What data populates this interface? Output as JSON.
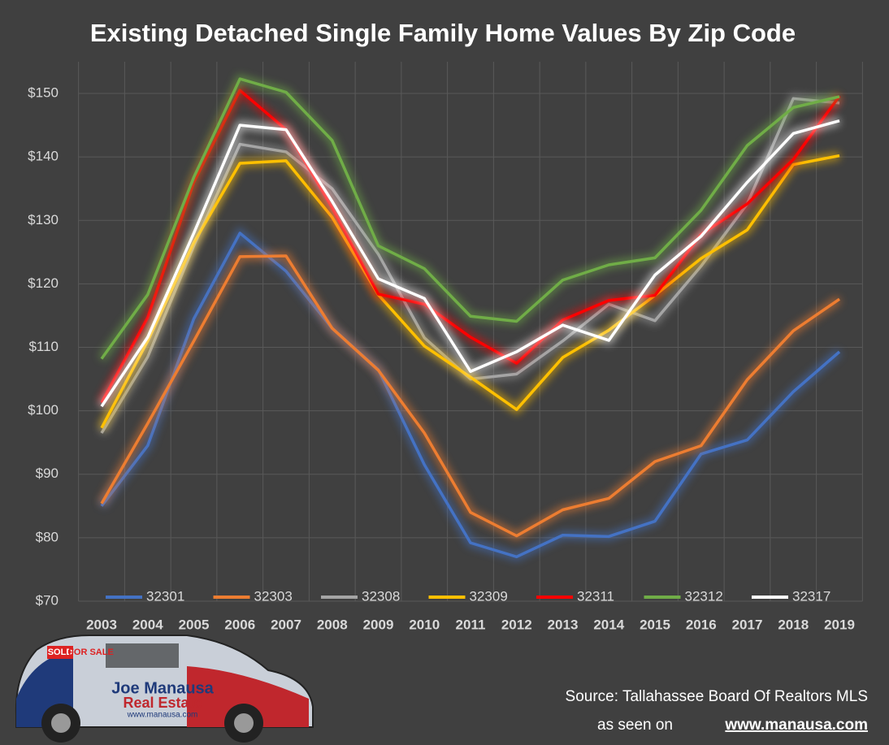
{
  "chart_data": {
    "type": "line",
    "title": "Existing Detached Single Family Home Values By Zip Code",
    "categories": [
      "2003",
      "2004",
      "2005",
      "2006",
      "2007",
      "2008",
      "2009",
      "2010",
      "2011",
      "2012",
      "2013",
      "2014",
      "2015",
      "2016",
      "2017",
      "2018",
      "2019"
    ],
    "series": [
      {
        "name": "32301",
        "color": "#4472c4",
        "values": [
          85,
          94.5,
          114.5,
          128,
          122,
          113,
          106.5,
          91.5,
          79.2,
          77,
          80.4,
          80.2,
          82.6,
          93.2,
          95.4,
          103,
          109.3
        ]
      },
      {
        "name": "32303",
        "color": "#ed7d31",
        "values": [
          85.4,
          98,
          111,
          124.3,
          124.4,
          113,
          106.4,
          96.5,
          84,
          80.3,
          84.4,
          86.2,
          92,
          94.5,
          104.9,
          112.6,
          117.6
        ]
      },
      {
        "name": "32308",
        "color": "#a5a5a5",
        "values": [
          96.5,
          108.5,
          126,
          142,
          140.8,
          135,
          124.7,
          111.5,
          105,
          105.8,
          111,
          116.8,
          114.2,
          122.8,
          132.6,
          149.2,
          148.5
        ]
      },
      {
        "name": "32309",
        "color": "#ffc000",
        "values": [
          97.3,
          111,
          126.5,
          139,
          139.4,
          130.5,
          118.3,
          110.2,
          105.3,
          100.2,
          108.4,
          112.7,
          118.2,
          124,
          128.5,
          138.8,
          140.2
        ]
      },
      {
        "name": "32311",
        "color": "#ff0000",
        "values": [
          101.3,
          114.7,
          136,
          150.5,
          144.3,
          132,
          118.4,
          116.8,
          111.6,
          107.5,
          114.3,
          117.4,
          118.2,
          127.8,
          132.6,
          139.6,
          149.6
        ]
      },
      {
        "name": "32312",
        "color": "#70ad47",
        "values": [
          108.2,
          118.3,
          136.8,
          152.3,
          150.2,
          142.6,
          126,
          122.4,
          114.9,
          114.1,
          120.6,
          123,
          124.1,
          131.6,
          141.8,
          147.8,
          149.5
        ]
      },
      {
        "name": "32317",
        "color": "#ffffff",
        "values": [
          100.7,
          111.6,
          128,
          145,
          144.3,
          133,
          120.8,
          117.7,
          106.2,
          109.3,
          113.5,
          111.1,
          121.4,
          127.5,
          136,
          143.7,
          145.7
        ]
      }
    ],
    "ylim": [
      70,
      155
    ],
    "yticks": [
      {
        "value": 70,
        "label": "$70"
      },
      {
        "value": 80,
        "label": "$80"
      },
      {
        "value": 90,
        "label": "$90"
      },
      {
        "value": 100,
        "label": "$100"
      },
      {
        "value": 110,
        "label": "$110"
      },
      {
        "value": 120,
        "label": "$120"
      },
      {
        "value": 130,
        "label": "$130"
      },
      {
        "value": 140,
        "label": "$140"
      },
      {
        "value": 150,
        "label": "$150"
      }
    ],
    "grid": true,
    "legend": "bottom"
  },
  "footer": {
    "source": "Source: Tallahassee Board Of Realtors MLS",
    "seen": "as seen on",
    "url": "www.manausa.com"
  },
  "car": {
    "sign": "SOLD",
    "sale": "FOR SALE",
    "brand": "Joe Manausa",
    "sub": "Real Estate",
    "web": "www.manausa.com"
  }
}
